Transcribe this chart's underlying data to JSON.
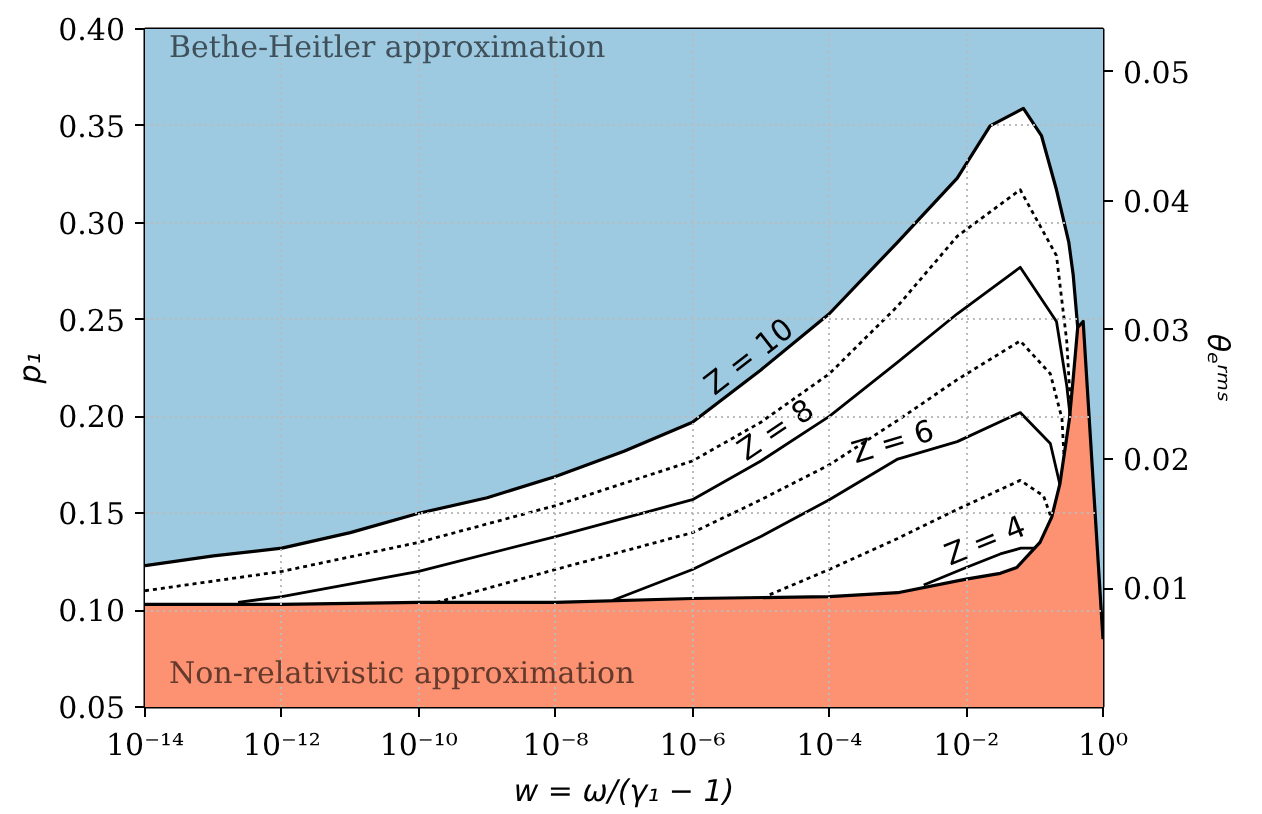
{
  "chart_data": {
    "type": "line",
    "xlabel": "w = ω/(γ₁ − 1)",
    "ylabel": "p₁",
    "y2label": "θₑʳᵐˢ",
    "xlim": [
      1e-14,
      1
    ],
    "ylim": [
      0.05,
      0.4
    ],
    "y2lim": [
      0.0008,
      0.0533
    ],
    "log": "x",
    "xticks": [
      {
        "value": 1e-14,
        "label": "10⁻¹⁴"
      },
      {
        "value": 1e-12,
        "label": "10⁻¹²"
      },
      {
        "value": 1e-10,
        "label": "10⁻¹⁰"
      },
      {
        "value": 1e-08,
        "label": "10⁻⁸"
      },
      {
        "value": 1e-06,
        "label": "10⁻⁶"
      },
      {
        "value": 0.0001,
        "label": "10⁻⁴"
      },
      {
        "value": 0.01,
        "label": "10⁻²"
      },
      {
        "value": 1,
        "label": "10⁰"
      }
    ],
    "yticks": [
      0.05,
      {
        "value": 0.1,
        "label": "0.10"
      },
      0.15,
      {
        "value": 0.2,
        "label": "0.20"
      },
      0.25,
      {
        "value": 0.3,
        "label": "0.30"
      },
      0.35,
      {
        "value": 0.4,
        "label": "0.40"
      }
    ],
    "y2ticks": [
      0.01,
      0.02,
      0.03,
      0.04,
      0.05
    ],
    "grid": true,
    "marker": "none",
    "series": [
      {
        "type": "area",
        "name": "Z = 10",
        "color": "#ffffff",
        "line_style": "solid",
        "x": [
          1e-14,
          1e-13,
          1e-12,
          1e-11,
          1e-10,
          1e-09,
          1e-08,
          1e-07,
          1e-06,
          1e-05,
          0.0001,
          0.001,
          0.00741,
          0.0224,
          0.0687,
          0.126,
          0.209,
          0.316,
          0.367,
          0.427
        ],
        "values": [
          0.123,
          0.128,
          0.132,
          0.14,
          0.15,
          0.158,
          0.169,
          0.182,
          0.197,
          0.224,
          0.253,
          0.29,
          0.323,
          0.35,
          0.359,
          0.345,
          0.317,
          0.29,
          0.273,
          0.246
        ]
      },
      {
        "type": "area",
        "color": "#fc9272",
        "x": [
          1e-14,
          1e-12,
          1e-10,
          1e-08,
          1e-06,
          0.0001,
          0.001,
          0.01,
          0.0316,
          0.055,
          0.12,
          0.178,
          0.234,
          0.324,
          0.372,
          0.427,
          0.513,
          1
        ],
        "values": [
          0.103,
          0.103,
          0.104,
          0.104,
          0.106,
          0.107,
          0.109,
          0.116,
          0.119,
          0.122,
          0.135,
          0.148,
          0.165,
          0.199,
          0.222,
          0.246,
          0.249,
          0.085
        ]
      },
      {
        "color": "#000000",
        "line_style": "dotted",
        "x": [
          1e-14,
          1e-12,
          1e-10,
          1e-08,
          1e-06,
          1e-05,
          0.0001,
          0.001,
          0.00741,
          0.0617,
          0.209,
          0.295,
          0.331
        ],
        "values": [
          0.11,
          0.12,
          0.135,
          0.154,
          0.177,
          0.197,
          0.222,
          0.257,
          0.293,
          0.317,
          0.283,
          0.239,
          0.209
        ]
      },
      {
        "name": "Z = 8",
        "color": "#000000",
        "line_style": "solid",
        "x": [
          2.29e-13,
          1e-12,
          1e-10,
          1e-08,
          1e-06,
          1e-05,
          0.0001,
          0.001,
          0.00741,
          0.0617,
          0.209,
          0.295,
          0.331
        ],
        "values": [
          0.104,
          0.107,
          0.12,
          0.138,
          0.157,
          0.177,
          0.2,
          0.228,
          0.253,
          0.277,
          0.249,
          0.216,
          0.2
        ]
      },
      {
        "color": "#000000",
        "line_style": "dotted",
        "x": [
          1.82e-10,
          1e-08,
          1e-06,
          1e-05,
          0.0001,
          0.001,
          0.00741,
          0.0617,
          0.17,
          0.251,
          0.269
        ],
        "values": [
          0.104,
          0.121,
          0.14,
          0.157,
          0.175,
          0.198,
          0.219,
          0.239,
          0.222,
          0.199,
          0.18
        ]
      },
      {
        "name": "Z = 6",
        "color": "#000000",
        "line_style": "solid",
        "x": [
          6.76e-08,
          1e-06,
          1e-05,
          0.0001,
          0.001,
          0.00741,
          0.0617,
          0.17,
          0.234
        ],
        "values": [
          0.105,
          0.121,
          0.138,
          0.157,
          0.178,
          0.187,
          0.202,
          0.186,
          0.165
        ]
      },
      {
        "color": "#000000",
        "line_style": "dotted",
        "x": [
          1.35e-05,
          0.0001,
          0.001,
          0.00741,
          0.0617,
          0.135,
          0.17
        ],
        "values": [
          0.108,
          0.121,
          0.137,
          0.152,
          0.167,
          0.159,
          0.149
        ]
      },
      {
        "name": "Z = 4",
        "color": "#000000",
        "line_style": "solid",
        "x": [
          0.0024,
          0.01,
          0.0316,
          0.0631,
          0.1
        ],
        "values": [
          0.113,
          0.122,
          0.129,
          0.132,
          0.132
        ]
      }
    ],
    "bands": [
      {
        "axis": "y",
        "from": 0.05,
        "to": 0.4,
        "color": "#9ecae1",
        "label": "Bethe-Heitler approximation"
      }
    ],
    "annotations": [
      "Non-relativistic approximation"
    ]
  }
}
